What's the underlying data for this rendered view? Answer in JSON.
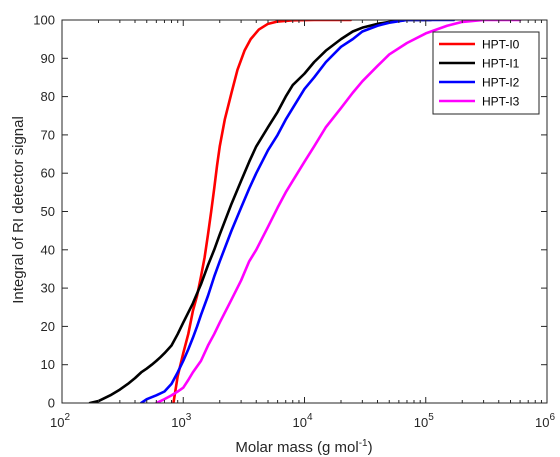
{
  "chart_data": {
    "type": "line",
    "title": "",
    "xlabel": "Molar mass (g mol",
    "xlabel_sup": "-1",
    "xlabel_tail": ")",
    "ylabel": "Integral of RI detector signal",
    "x_scale": "log",
    "xlim": [
      100,
      1000000
    ],
    "ylim": [
      0,
      100
    ],
    "xticks": [
      {
        "value": 100,
        "base": "10",
        "exp": "2"
      },
      {
        "value": 1000,
        "base": "10",
        "exp": "3"
      },
      {
        "value": 10000,
        "base": "10",
        "exp": "4"
      },
      {
        "value": 100000,
        "base": "10",
        "exp": "5"
      },
      {
        "value": 1000000,
        "base": "10",
        "exp": "6"
      }
    ],
    "yticks": [
      0,
      10,
      20,
      30,
      40,
      50,
      60,
      70,
      80,
      90,
      100
    ],
    "grid": false,
    "legend_position": "top-right",
    "series": [
      {
        "name": "HPT-I0",
        "color": "#ff0000",
        "points": [
          [
            830,
            0
          ],
          [
            900,
            7
          ],
          [
            1000,
            13
          ],
          [
            1100,
            18
          ],
          [
            1200,
            24
          ],
          [
            1300,
            28
          ],
          [
            1400,
            33
          ],
          [
            1500,
            38
          ],
          [
            1600,
            44
          ],
          [
            1700,
            50
          ],
          [
            1800,
            56
          ],
          [
            1900,
            62
          ],
          [
            2000,
            67
          ],
          [
            2200,
            74
          ],
          [
            2500,
            81
          ],
          [
            2800,
            87
          ],
          [
            3200,
            92
          ],
          [
            3600,
            95
          ],
          [
            4200,
            97.5
          ],
          [
            5000,
            99
          ],
          [
            6000,
            99.6
          ],
          [
            8000,
            99.9
          ],
          [
            12000,
            100
          ],
          [
            24000,
            100
          ]
        ]
      },
      {
        "name": "HPT-I1",
        "color": "#000000",
        "points": [
          [
            170,
            0
          ],
          [
            200,
            0.5
          ],
          [
            250,
            2
          ],
          [
            300,
            3.5
          ],
          [
            350,
            5
          ],
          [
            400,
            6.5
          ],
          [
            450,
            8
          ],
          [
            500,
            9
          ],
          [
            550,
            10
          ],
          [
            600,
            11
          ],
          [
            650,
            12
          ],
          [
            700,
            13
          ],
          [
            800,
            15
          ],
          [
            900,
            18
          ],
          [
            1000,
            21
          ],
          [
            1200,
            26
          ],
          [
            1400,
            31
          ],
          [
            1600,
            36
          ],
          [
            1800,
            40
          ],
          [
            2000,
            44
          ],
          [
            2500,
            52
          ],
          [
            3000,
            58
          ],
          [
            3500,
            63
          ],
          [
            4000,
            67
          ],
          [
            5000,
            72
          ],
          [
            6000,
            76
          ],
          [
            7000,
            80
          ],
          [
            8000,
            83
          ],
          [
            10000,
            86
          ],
          [
            12000,
            89
          ],
          [
            15000,
            92
          ],
          [
            20000,
            95
          ],
          [
            25000,
            97
          ],
          [
            30000,
            98
          ],
          [
            40000,
            99
          ],
          [
            50000,
            99.5
          ],
          [
            70000,
            100
          ],
          [
            110000,
            100
          ]
        ]
      },
      {
        "name": "HPT-I2",
        "color": "#0000ff",
        "points": [
          [
            450,
            0
          ],
          [
            500,
            1
          ],
          [
            600,
            2
          ],
          [
            700,
            3
          ],
          [
            800,
            5
          ],
          [
            900,
            8
          ],
          [
            1000,
            11
          ],
          [
            1100,
            14
          ],
          [
            1200,
            17
          ],
          [
            1300,
            20
          ],
          [
            1400,
            23
          ],
          [
            1600,
            28
          ],
          [
            1800,
            33
          ],
          [
            2000,
            37
          ],
          [
            2500,
            45
          ],
          [
            3000,
            51
          ],
          [
            3500,
            56
          ],
          [
            4000,
            60
          ],
          [
            5000,
            66
          ],
          [
            6000,
            70
          ],
          [
            7000,
            74
          ],
          [
            8000,
            77
          ],
          [
            10000,
            82
          ],
          [
            12000,
            85
          ],
          [
            15000,
            89
          ],
          [
            20000,
            93
          ],
          [
            25000,
            95
          ],
          [
            30000,
            97
          ],
          [
            40000,
            98.5
          ],
          [
            50000,
            99.3
          ],
          [
            70000,
            100
          ],
          [
            170000,
            100
          ]
        ]
      },
      {
        "name": "HPT-I3",
        "color": "#ff00ff",
        "points": [
          [
            600,
            0
          ],
          [
            700,
            1
          ],
          [
            800,
            2
          ],
          [
            900,
            3
          ],
          [
            1000,
            4
          ],
          [
            1100,
            6
          ],
          [
            1200,
            8
          ],
          [
            1400,
            11
          ],
          [
            1600,
            15
          ],
          [
            1800,
            18
          ],
          [
            2000,
            21
          ],
          [
            2500,
            27
          ],
          [
            3000,
            32
          ],
          [
            3500,
            37
          ],
          [
            4000,
            40
          ],
          [
            5000,
            46
          ],
          [
            6000,
            51
          ],
          [
            7000,
            55
          ],
          [
            8000,
            58
          ],
          [
            10000,
            63
          ],
          [
            12000,
            67
          ],
          [
            15000,
            72
          ],
          [
            20000,
            77
          ],
          [
            25000,
            81
          ],
          [
            30000,
            84
          ],
          [
            40000,
            88
          ],
          [
            50000,
            91
          ],
          [
            70000,
            94
          ],
          [
            100000,
            96.5
          ],
          [
            150000,
            98.5
          ],
          [
            200000,
            99.5
          ],
          [
            300000,
            100
          ],
          [
            600000,
            100
          ]
        ]
      }
    ]
  }
}
